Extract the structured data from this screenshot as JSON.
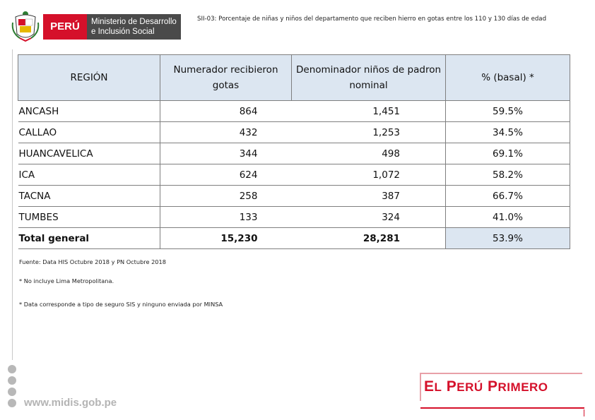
{
  "header": {
    "logo_country": "PERÚ",
    "logo_ministry_line1": "Ministerio de Desarrollo",
    "logo_ministry_line2": "e Inclusión Social",
    "title": "SII-03: Porcentaje de niñas y niños del departamento que reciben hierro en gotas entre los 110 y 130 días de edad",
    "colors": {
      "peru_red": "#d5102a",
      "ministry_gray": "#4a4a4a",
      "header_fill": "#dce6f1"
    }
  },
  "table": {
    "columns": [
      "REGIÓN",
      "Numerador recibieron gotas",
      "Denominador niños de padron nominal",
      "% (basal) *"
    ],
    "rows": [
      {
        "region": "ANCASH",
        "numerador": "864",
        "denominador": "1,451",
        "pct": "59.5%"
      },
      {
        "region": "CALLAO",
        "numerador": "432",
        "denominador": "1,253",
        "pct": "34.5%"
      },
      {
        "region": "HUANCAVELICA",
        "numerador": "344",
        "denominador": "498",
        "pct": "69.1%"
      },
      {
        "region": "ICA",
        "numerador": "624",
        "denominador": "1,072",
        "pct": "58.2%"
      },
      {
        "region": "TACNA",
        "numerador": "258",
        "denominador": "387",
        "pct": "66.7%"
      },
      {
        "region": "TUMBES",
        "numerador": "133",
        "denominador": "324",
        "pct": "41.0%"
      }
    ],
    "total": {
      "region": "Total general",
      "numerador": "15,230",
      "denominador": "28,281",
      "pct": "53.9%"
    }
  },
  "notes": {
    "source": "Fuente: Data HIS Octubre 2018 y PN Octubre 2018",
    "note1": "* No incluye Lima Metropolitana.",
    "note2": "* Data corresponde a tipo de seguro SIS y ninguno enviada por MINSA"
  },
  "footer": {
    "website": "www.midis.gob.pe",
    "social_icons": [
      "facebook-icon",
      "twitter-icon",
      "instagram-icon",
      "youtube-icon"
    ],
    "brand_word1_initial": "E",
    "brand_word1_rest": "L",
    "brand_word2_initial": "P",
    "brand_word2_rest": "ERÚ",
    "brand_word3_initial": "P",
    "brand_word3_rest": "RIMERO"
  }
}
